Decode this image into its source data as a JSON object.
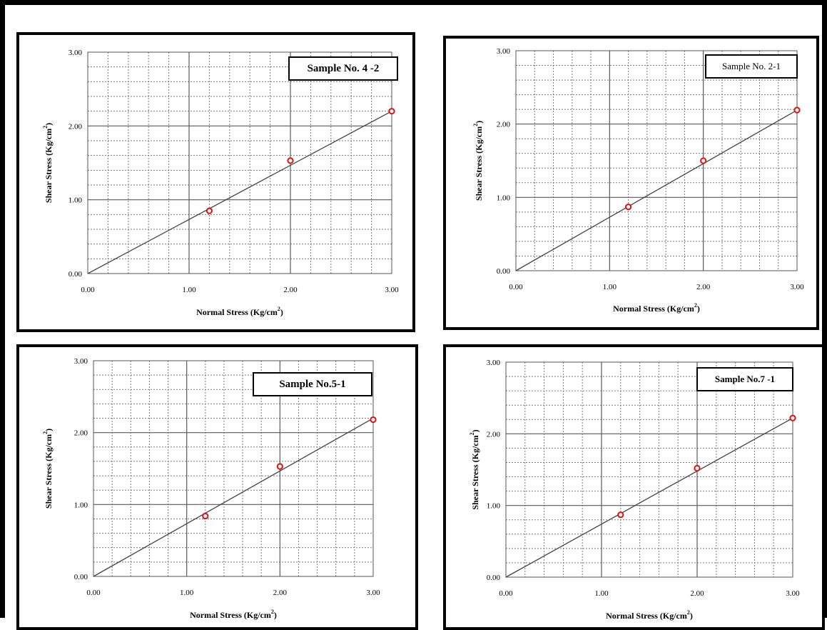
{
  "chart_data": [
    {
      "type": "scatter",
      "sample_label": "Sample No. 4 -2",
      "xlabel": "Normal Stress (Kg/cm",
      "xlabel_sup": "2",
      "xlabel_close": ")",
      "ylabel": "Shear Stress (Kg/cm",
      "ylabel_sup": "2",
      "ylabel_close": ")",
      "xlim": [
        0,
        3
      ],
      "ylim": [
        0,
        3
      ],
      "x_ticks": [
        "0.00",
        "1.00",
        "2.00",
        "3.00"
      ],
      "y_ticks": [
        "0.00",
        "1.00",
        "2.00",
        "3.00"
      ],
      "grid": true,
      "points": {
        "x": [
          1.2,
          2.0,
          3.0
        ],
        "y": [
          0.85,
          1.53,
          2.2
        ]
      },
      "fit_line": {
        "x": [
          0,
          3.0
        ],
        "y": [
          0,
          2.2
        ]
      },
      "marker_color": "#dd1111",
      "line_color": "#444444"
    },
    {
      "type": "scatter",
      "sample_label": "Sample No. 2-1",
      "xlabel": "Normal Stress (Kg/cm",
      "xlabel_sup": "2",
      "xlabel_close": ")",
      "ylabel": "Shear Stress (Kg/cm",
      "ylabel_sup": "2",
      "ylabel_close": ")",
      "xlim": [
        0,
        3
      ],
      "ylim": [
        0,
        3
      ],
      "x_ticks": [
        "0.00",
        "1.00",
        "2.00",
        "3.00"
      ],
      "y_ticks": [
        "0.00",
        "1.00",
        "2.00",
        "3.00"
      ],
      "grid": true,
      "points": {
        "x": [
          1.2,
          2.0,
          3.0
        ],
        "y": [
          0.87,
          1.5,
          2.19
        ]
      },
      "fit_line": {
        "x": [
          0,
          3.0
        ],
        "y": [
          0,
          2.19
        ]
      },
      "marker_color": "#dd1111",
      "line_color": "#444444"
    },
    {
      "type": "scatter",
      "sample_label": "Sample No.5-1",
      "xlabel": "Normal Stress (Kg/cm",
      "xlabel_sup": "2",
      "xlabel_close": ")",
      "ylabel": "Shear Stress (Kg/cm",
      "ylabel_sup": "2",
      "ylabel_close": ")",
      "xlim": [
        0,
        3
      ],
      "ylim": [
        0,
        3
      ],
      "x_ticks": [
        "0.00",
        "1.00",
        "2.00",
        "3.00"
      ],
      "y_ticks": [
        "0.00",
        "1.00",
        "2.00",
        "3.00"
      ],
      "grid": true,
      "points": {
        "x": [
          1.2,
          2.0,
          3.0
        ],
        "y": [
          0.84,
          1.53,
          2.18
        ]
      },
      "fit_line": {
        "x": [
          0,
          3.0
        ],
        "y": [
          0,
          2.2
        ]
      },
      "marker_color": "#dd1111",
      "line_color": "#444444"
    },
    {
      "type": "scatter",
      "sample_label": "Sample No.7 -1",
      "xlabel": "Normal Stress (Kg/cm",
      "xlabel_sup": "2",
      "xlabel_close": ")",
      "ylabel": "Shear Stress (Kg/cm",
      "ylabel_sup": "2",
      "ylabel_close": ")",
      "xlim": [
        0,
        3
      ],
      "ylim": [
        0,
        3
      ],
      "x_ticks": [
        "0.00",
        "1.00",
        "2.00",
        "3.00"
      ],
      "y_ticks": [
        "0.00",
        "1.00",
        "2.00",
        "3.00"
      ],
      "grid": true,
      "points": {
        "x": [
          1.2,
          2.0,
          3.0
        ],
        "y": [
          0.87,
          1.52,
          2.22
        ]
      },
      "fit_line": {
        "x": [
          0,
          3.0
        ],
        "y": [
          0,
          2.22
        ]
      },
      "marker_color": "#dd1111",
      "line_color": "#444444"
    }
  ]
}
